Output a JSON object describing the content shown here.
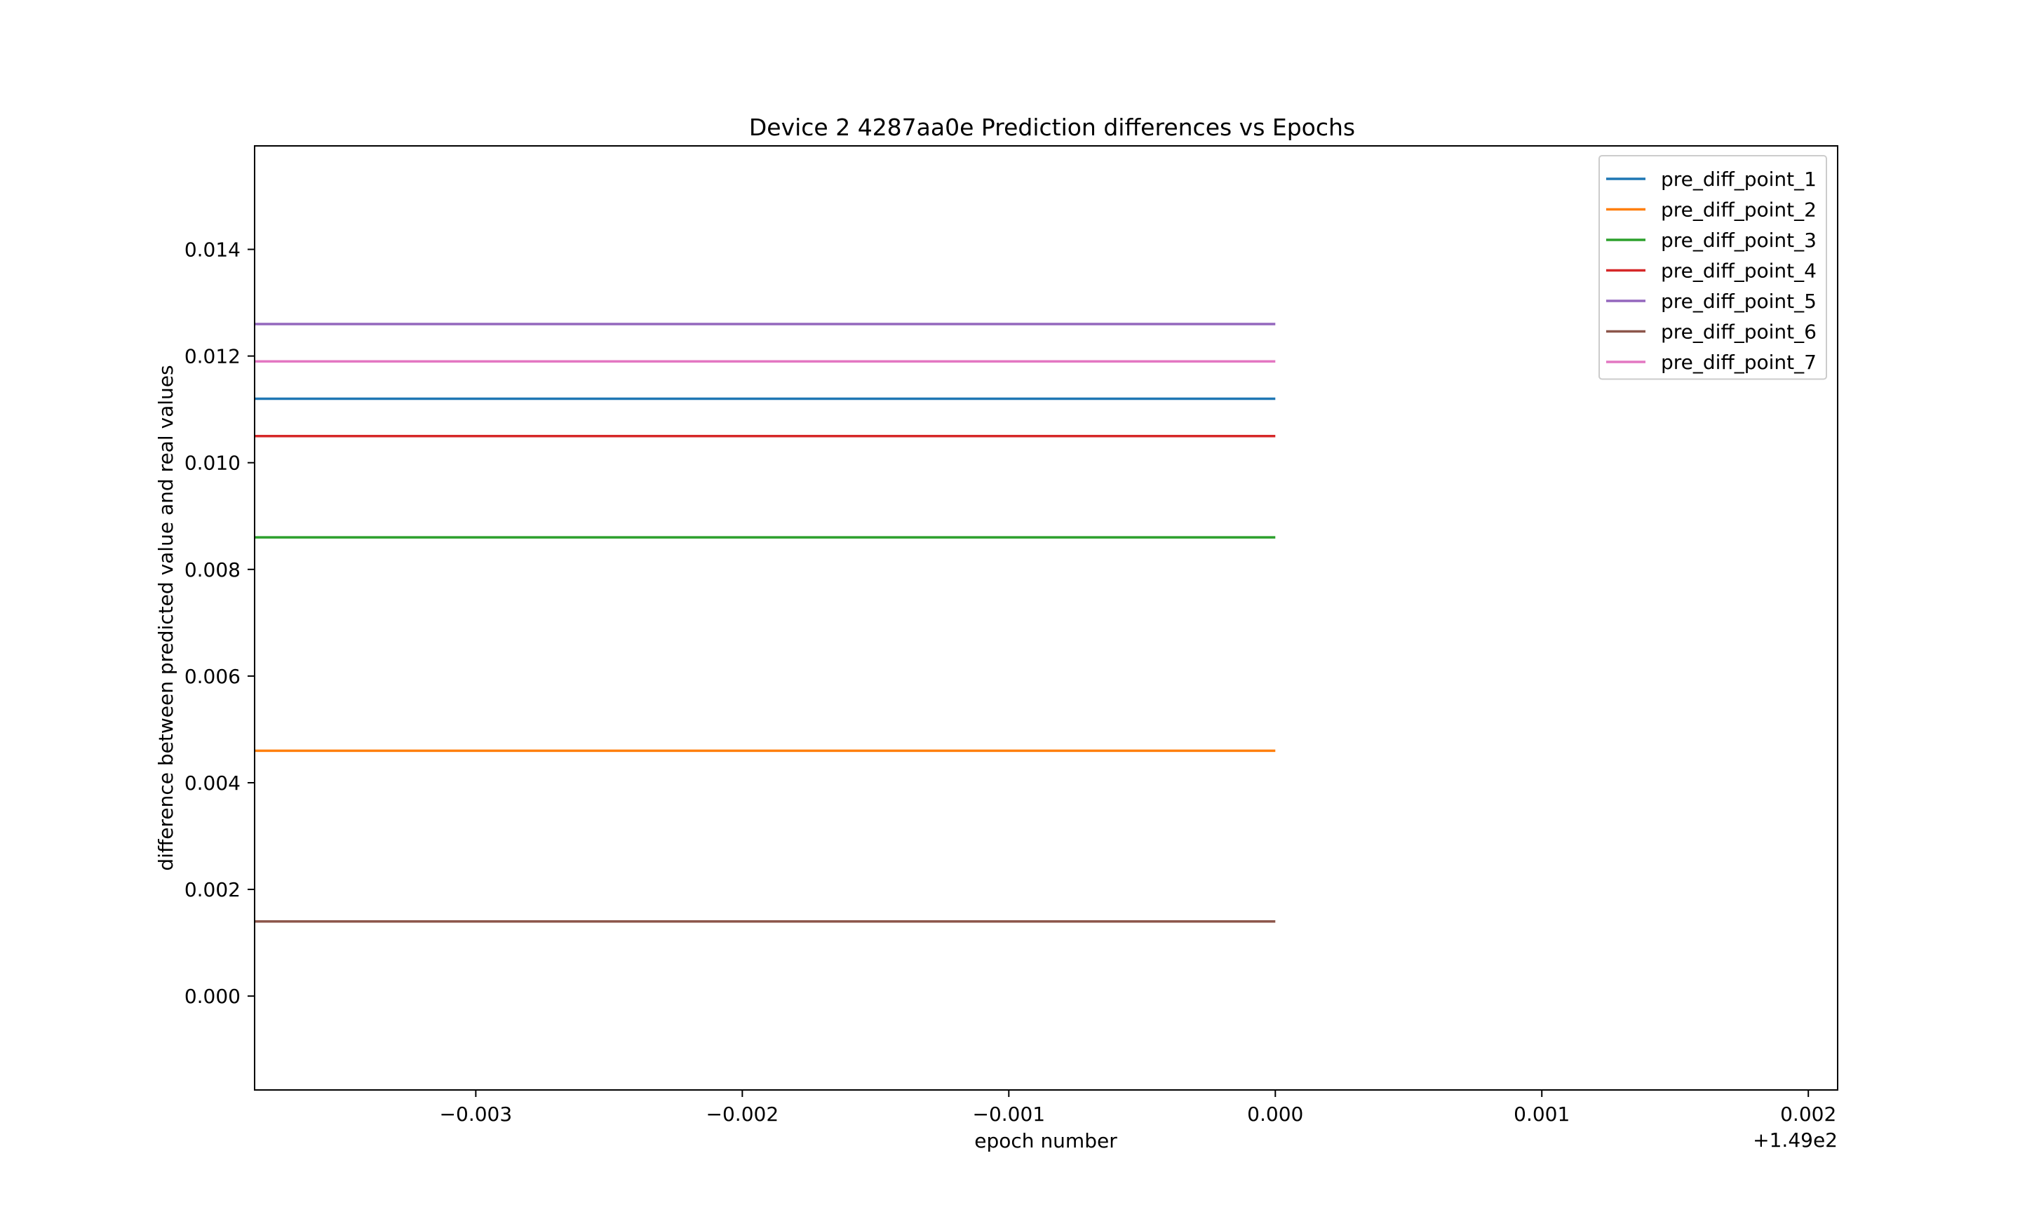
{
  "chart_data": {
    "type": "line",
    "title": "Device 2 4287aa0e Prediction differences vs Epochs",
    "xlabel": "epoch number",
    "ylabel": "difference between predicted value and real values",
    "x_offset_label": "+1.49e2",
    "x_tick_labels": [
      "−0.003",
      "−0.002",
      "−0.001",
      "0.000",
      "0.001",
      "0.002"
    ],
    "x_tick_values": [
      148.997,
      148.998,
      148.999,
      149.0,
      149.001,
      149.002
    ],
    "y_tick_labels": [
      "0.000",
      "0.002",
      "0.004",
      "0.006",
      "0.008",
      "0.010",
      "0.012",
      "0.014"
    ],
    "y_tick_values": [
      0.0,
      0.002,
      0.004,
      0.006,
      0.008,
      0.01,
      0.012,
      0.014
    ],
    "xlim": [
      148.99617,
      149.00211
    ],
    "ylim": [
      -0.00176,
      0.01594
    ],
    "grid": false,
    "legend_position": "top-right",
    "series": [
      {
        "name": "pre_diff_point_1",
        "color": "#1f77b4",
        "x": [
          148.99617,
          149.0
        ],
        "values": [
          0.0112,
          0.0112
        ]
      },
      {
        "name": "pre_diff_point_2",
        "color": "#ff7f0e",
        "x": [
          148.99617,
          149.0
        ],
        "values": [
          0.0046,
          0.0046
        ]
      },
      {
        "name": "pre_diff_point_3",
        "color": "#2ca02c",
        "x": [
          148.99617,
          149.0
        ],
        "values": [
          0.0086,
          0.0086
        ]
      },
      {
        "name": "pre_diff_point_4",
        "color": "#d62728",
        "x": [
          148.99617,
          149.0
        ],
        "values": [
          0.0105,
          0.0105
        ]
      },
      {
        "name": "pre_diff_point_5",
        "color": "#9467bd",
        "x": [
          148.99617,
          149.0
        ],
        "values": [
          0.0126,
          0.0126
        ]
      },
      {
        "name": "pre_diff_point_6",
        "color": "#8c564b",
        "x": [
          148.99617,
          149.0
        ],
        "values": [
          0.0014,
          0.0014
        ]
      },
      {
        "name": "pre_diff_point_7",
        "color": "#e377c2",
        "x": [
          148.99617,
          149.0
        ],
        "values": [
          0.0119,
          0.0119
        ]
      }
    ]
  }
}
